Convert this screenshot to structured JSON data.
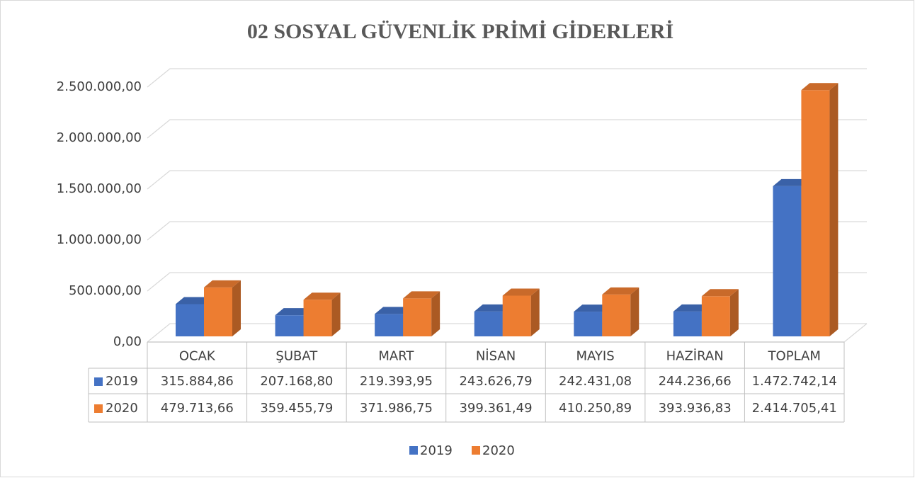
{
  "chart_data": {
    "type": "bar3d",
    "title": "02 SOSYAL GÜVENLİK PRİMİ GİDERLERİ",
    "categories": [
      "OCAK",
      "ŞUBAT",
      "MART",
      "NİSAN",
      "MAYIS",
      "HAZİRAN",
      "TOPLAM"
    ],
    "series": [
      {
        "name": "2019",
        "color": "#4472c4",
        "values": [
          315884.86,
          207168.8,
          219393.95,
          243626.79,
          242431.08,
          244236.66,
          1472742.14
        ],
        "value_labels": [
          "315.884,86",
          "207.168,80",
          "219.393,95",
          "243.626,79",
          "242.431,08",
          "244.236,66",
          "1.472.742,14"
        ]
      },
      {
        "name": "2020",
        "color": "#ed7d31",
        "values": [
          479713.66,
          359455.79,
          371986.75,
          399361.49,
          410250.89,
          393936.83,
          2414705.41
        ],
        "value_labels": [
          "479.713,66",
          "359.455,79",
          "371.986,75",
          "399.361,49",
          "410.250,89",
          "393.936,83",
          "2.414.705,41"
        ]
      }
    ],
    "ylim": [
      0,
      2500000
    ],
    "yticks": [
      {
        "value": 0,
        "label": "0,00"
      },
      {
        "value": 500000,
        "label": "500.000,00"
      },
      {
        "value": 1000000,
        "label": "1.000.000,00"
      },
      {
        "value": 1500000,
        "label": "1.500.000,00"
      },
      {
        "value": 2000000,
        "label": "2.000.000,00"
      },
      {
        "value": 2500000,
        "label": "2.500.000,00"
      }
    ],
    "grid": true,
    "legend": "bottom"
  }
}
